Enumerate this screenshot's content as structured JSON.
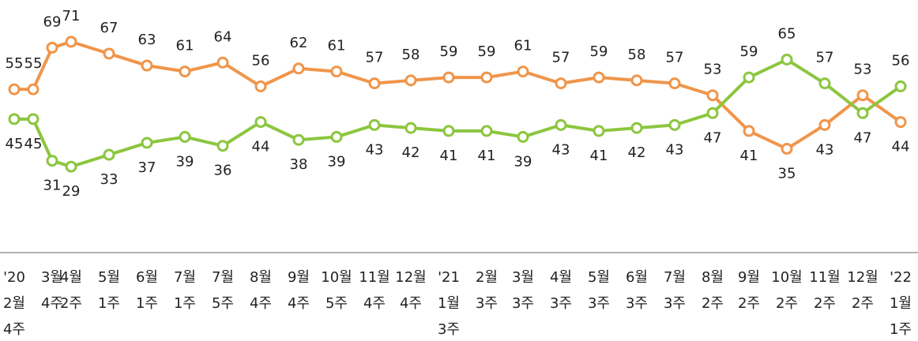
{
  "chart_data": {
    "type": "line",
    "categories": [
      [
        "'20",
        "2월",
        "4주"
      ],
      null,
      [
        "3월",
        "4주"
      ],
      [
        "4월",
        "2주"
      ],
      [
        "5월",
        "1주"
      ],
      [
        "6월",
        "1주"
      ],
      [
        "7월",
        "1주"
      ],
      [
        "7월",
        "5주"
      ],
      [
        "8월",
        "4주"
      ],
      [
        "9월",
        "4주"
      ],
      [
        "10월",
        "5주"
      ],
      [
        "11월",
        "4주"
      ],
      [
        "12월",
        "4주"
      ],
      [
        "'21",
        "1월",
        "3주"
      ],
      [
        "2월",
        "3주"
      ],
      [
        "3월",
        "3주"
      ],
      [
        "4월",
        "3주"
      ],
      [
        "5월",
        "3주"
      ],
      [
        "6월",
        "3주"
      ],
      [
        "7월",
        "3주"
      ],
      [
        "8월",
        "2주"
      ],
      [
        "9월",
        "2주"
      ],
      [
        "10월",
        "2주"
      ],
      [
        "11월",
        "2주"
      ],
      [
        "12월",
        "2주"
      ],
      [
        "'22",
        "1월",
        "1주"
      ]
    ],
    "series": [
      {
        "color": "#f0954a",
        "values": [
          55,
          55,
          69,
          71,
          67,
          63,
          61,
          64,
          56,
          62,
          61,
          57,
          58,
          59,
          59,
          61,
          57,
          59,
          58,
          57,
          53,
          41,
          35,
          43,
          53,
          44
        ]
      },
      {
        "color": "#8cc63f",
        "values": [
          45,
          45,
          31,
          29,
          33,
          37,
          39,
          36,
          44,
          38,
          39,
          43,
          42,
          41,
          41,
          39,
          43,
          41,
          42,
          43,
          47,
          59,
          65,
          57,
          47,
          56
        ]
      }
    ],
    "ylim": [
      20,
      80
    ]
  }
}
